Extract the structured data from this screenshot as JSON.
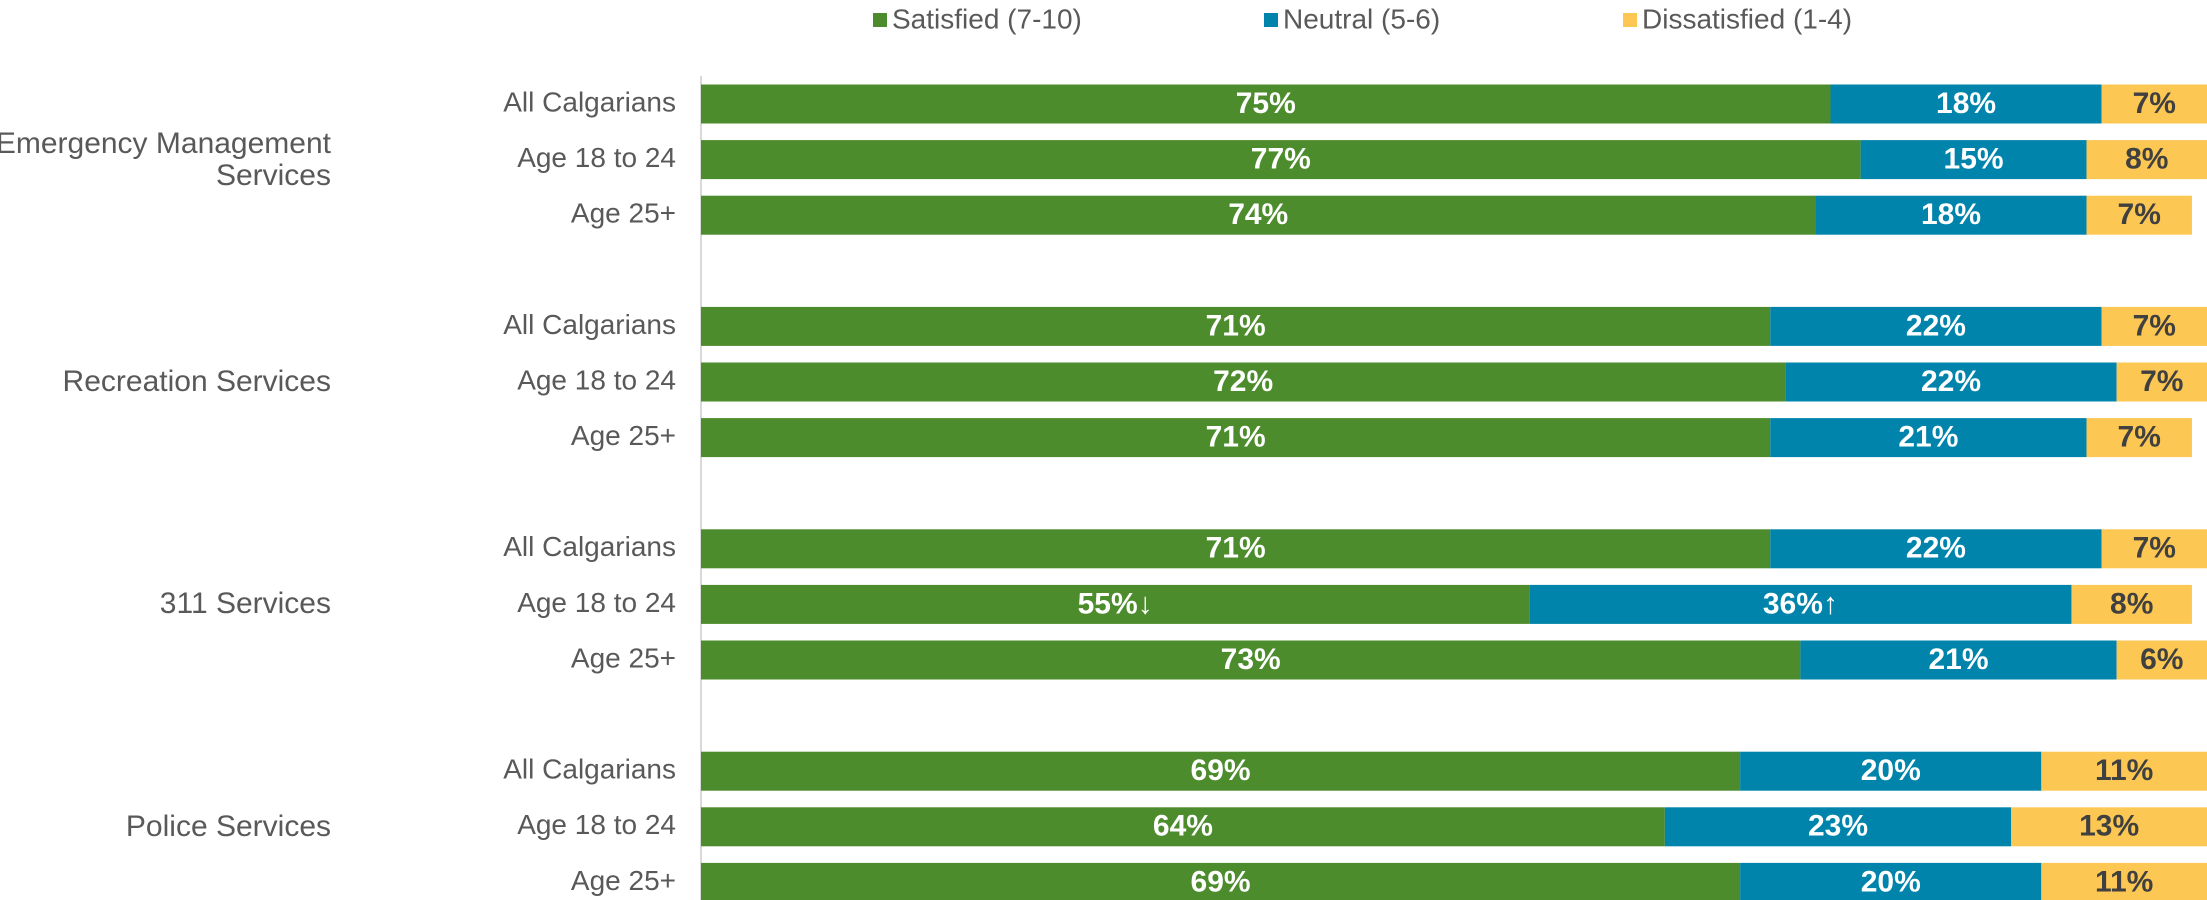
{
  "chart_data": {
    "type": "stacked-bar",
    "groups": [
      "Emergency Management Services",
      "Recreation Services",
      "311 Services",
      "Police Services"
    ],
    "categories": [
      "All Calgarians",
      "Age 18 to 24",
      "Age 25+",
      "All Calgarians",
      "Age 18 to 24",
      "Age 25+",
      "All Calgarians",
      "Age 18 to 24",
      "Age 25+",
      "All Calgarians",
      "Age 18 to 24",
      "Age 25+"
    ],
    "xlim": [
      0,
      100
    ],
    "series": [
      {
        "name": "Satisfied (7-10)",
        "color": "#4d8c2c",
        "label_color": "#ffffff",
        "values": [
          75,
          77,
          74,
          71,
          72,
          71,
          71,
          55,
          73,
          69,
          64,
          69
        ],
        "value_labels": [
          "75%",
          "77%",
          "74%",
          "71%",
          "72%",
          "71%",
          "71%",
          "55%↓",
          "73%",
          "69%",
          "64%",
          "69%"
        ]
      },
      {
        "name": "Neutral (5-6)",
        "color": "#0084ac",
        "label_color": "#ffffff",
        "values": [
          18,
          15,
          18,
          22,
          22,
          21,
          22,
          36,
          21,
          20,
          23,
          20
        ],
        "value_labels": [
          "18%",
          "15%",
          "18%",
          "22%",
          "22%",
          "21%",
          "22%",
          "36%↑",
          "21%",
          "20%",
          "23%",
          "20%"
        ]
      },
      {
        "name": "Dissatisfied (1-4)",
        "color": "#fcc752",
        "label_color": "#404040",
        "values": [
          7,
          8,
          7,
          7,
          7,
          7,
          7,
          8,
          6,
          11,
          13,
          11
        ],
        "value_labels": [
          "7%",
          "8%",
          "7%",
          "7%",
          "7%",
          "7%",
          "7%",
          "8%",
          "6%",
          "11%",
          "13%",
          "11%"
        ]
      }
    ]
  }
}
